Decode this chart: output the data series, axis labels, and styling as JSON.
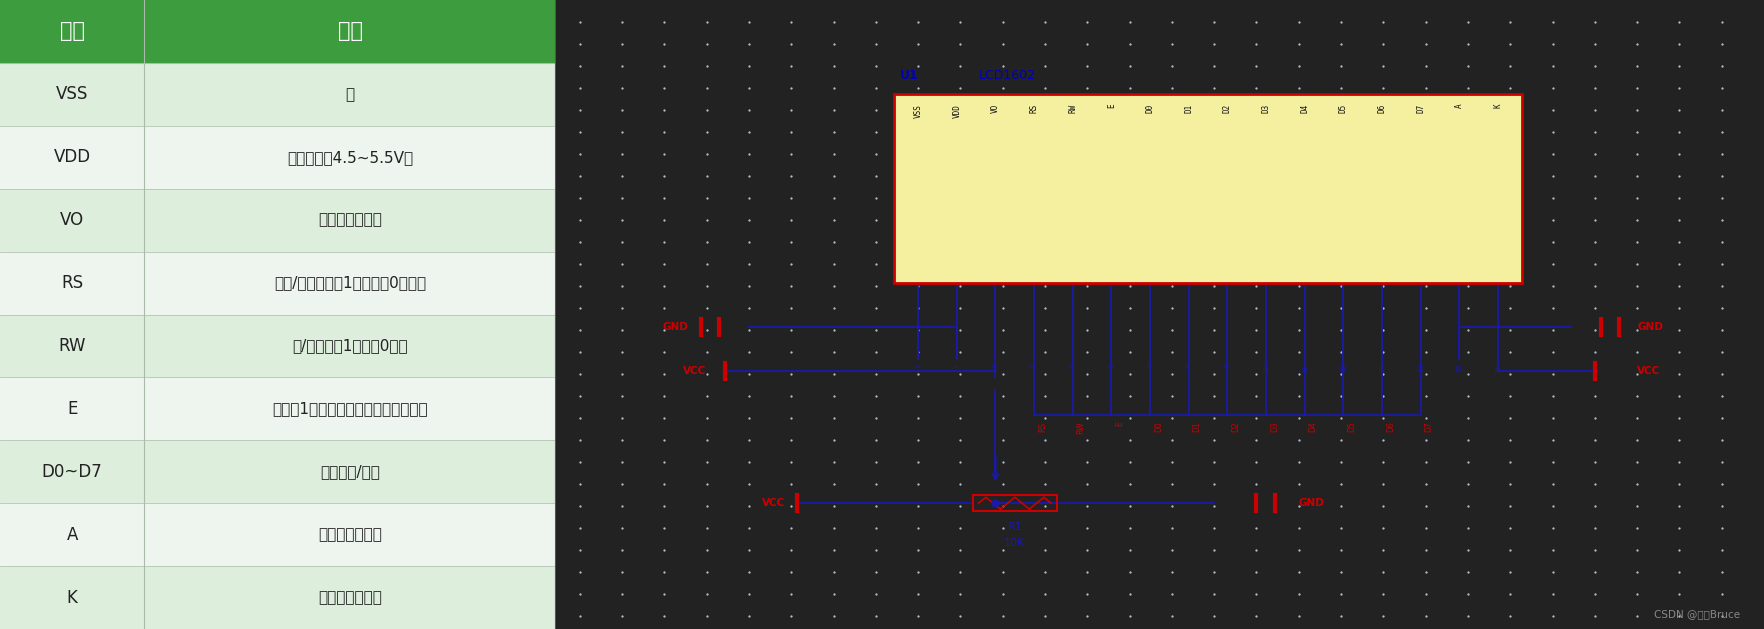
{
  "table_headers": [
    "引脚",
    "功能"
  ],
  "table_rows": [
    [
      "VSS",
      "地"
    ],
    [
      "VDD",
      "电源正极（4.5~5.5V）"
    ],
    [
      "VO",
      "对比度调节电压"
    ],
    [
      "RS",
      "数据/指令选择，1为数据，0为指令"
    ],
    [
      "RW",
      "读/写选择，1为读，0为写"
    ],
    [
      "E",
      "使能，1为数据有效，下降沿执行命令"
    ],
    [
      "D0~D7",
      "数据输入/输出"
    ],
    [
      "A",
      "背光灯电源正极"
    ],
    [
      "K",
      "背光灯电源负极"
    ]
  ],
  "header_bg": "#3d9c3d",
  "header_fg": "#ffffff",
  "row_bg_even": "#ddeedd",
  "row_bg_odd": "#eef5ee",
  "table_text": "#222222",
  "fig_bg": "#222222",
  "circuit_bg": "#e8eef5",
  "watermark": "CSDN @海上Bruce",
  "chip_bg": "#f5f0a0",
  "chip_border": "#cc0000",
  "blue_color": "#0000bb",
  "red_color": "#cc0000",
  "line_color": "#1a1aaa",
  "pin_labels_top": [
    "VSS",
    "VDD",
    "VO",
    "RS",
    "RW",
    "E",
    "D0",
    "D1",
    "D2",
    "D3",
    "D4",
    "D5",
    "D6",
    "D7",
    "A",
    "K"
  ],
  "pin_numbers": [
    "1",
    "2",
    "3",
    "4",
    "5",
    "6",
    "7",
    "8",
    "9",
    "10",
    "11",
    "12",
    "13",
    "14",
    "15",
    "16"
  ]
}
